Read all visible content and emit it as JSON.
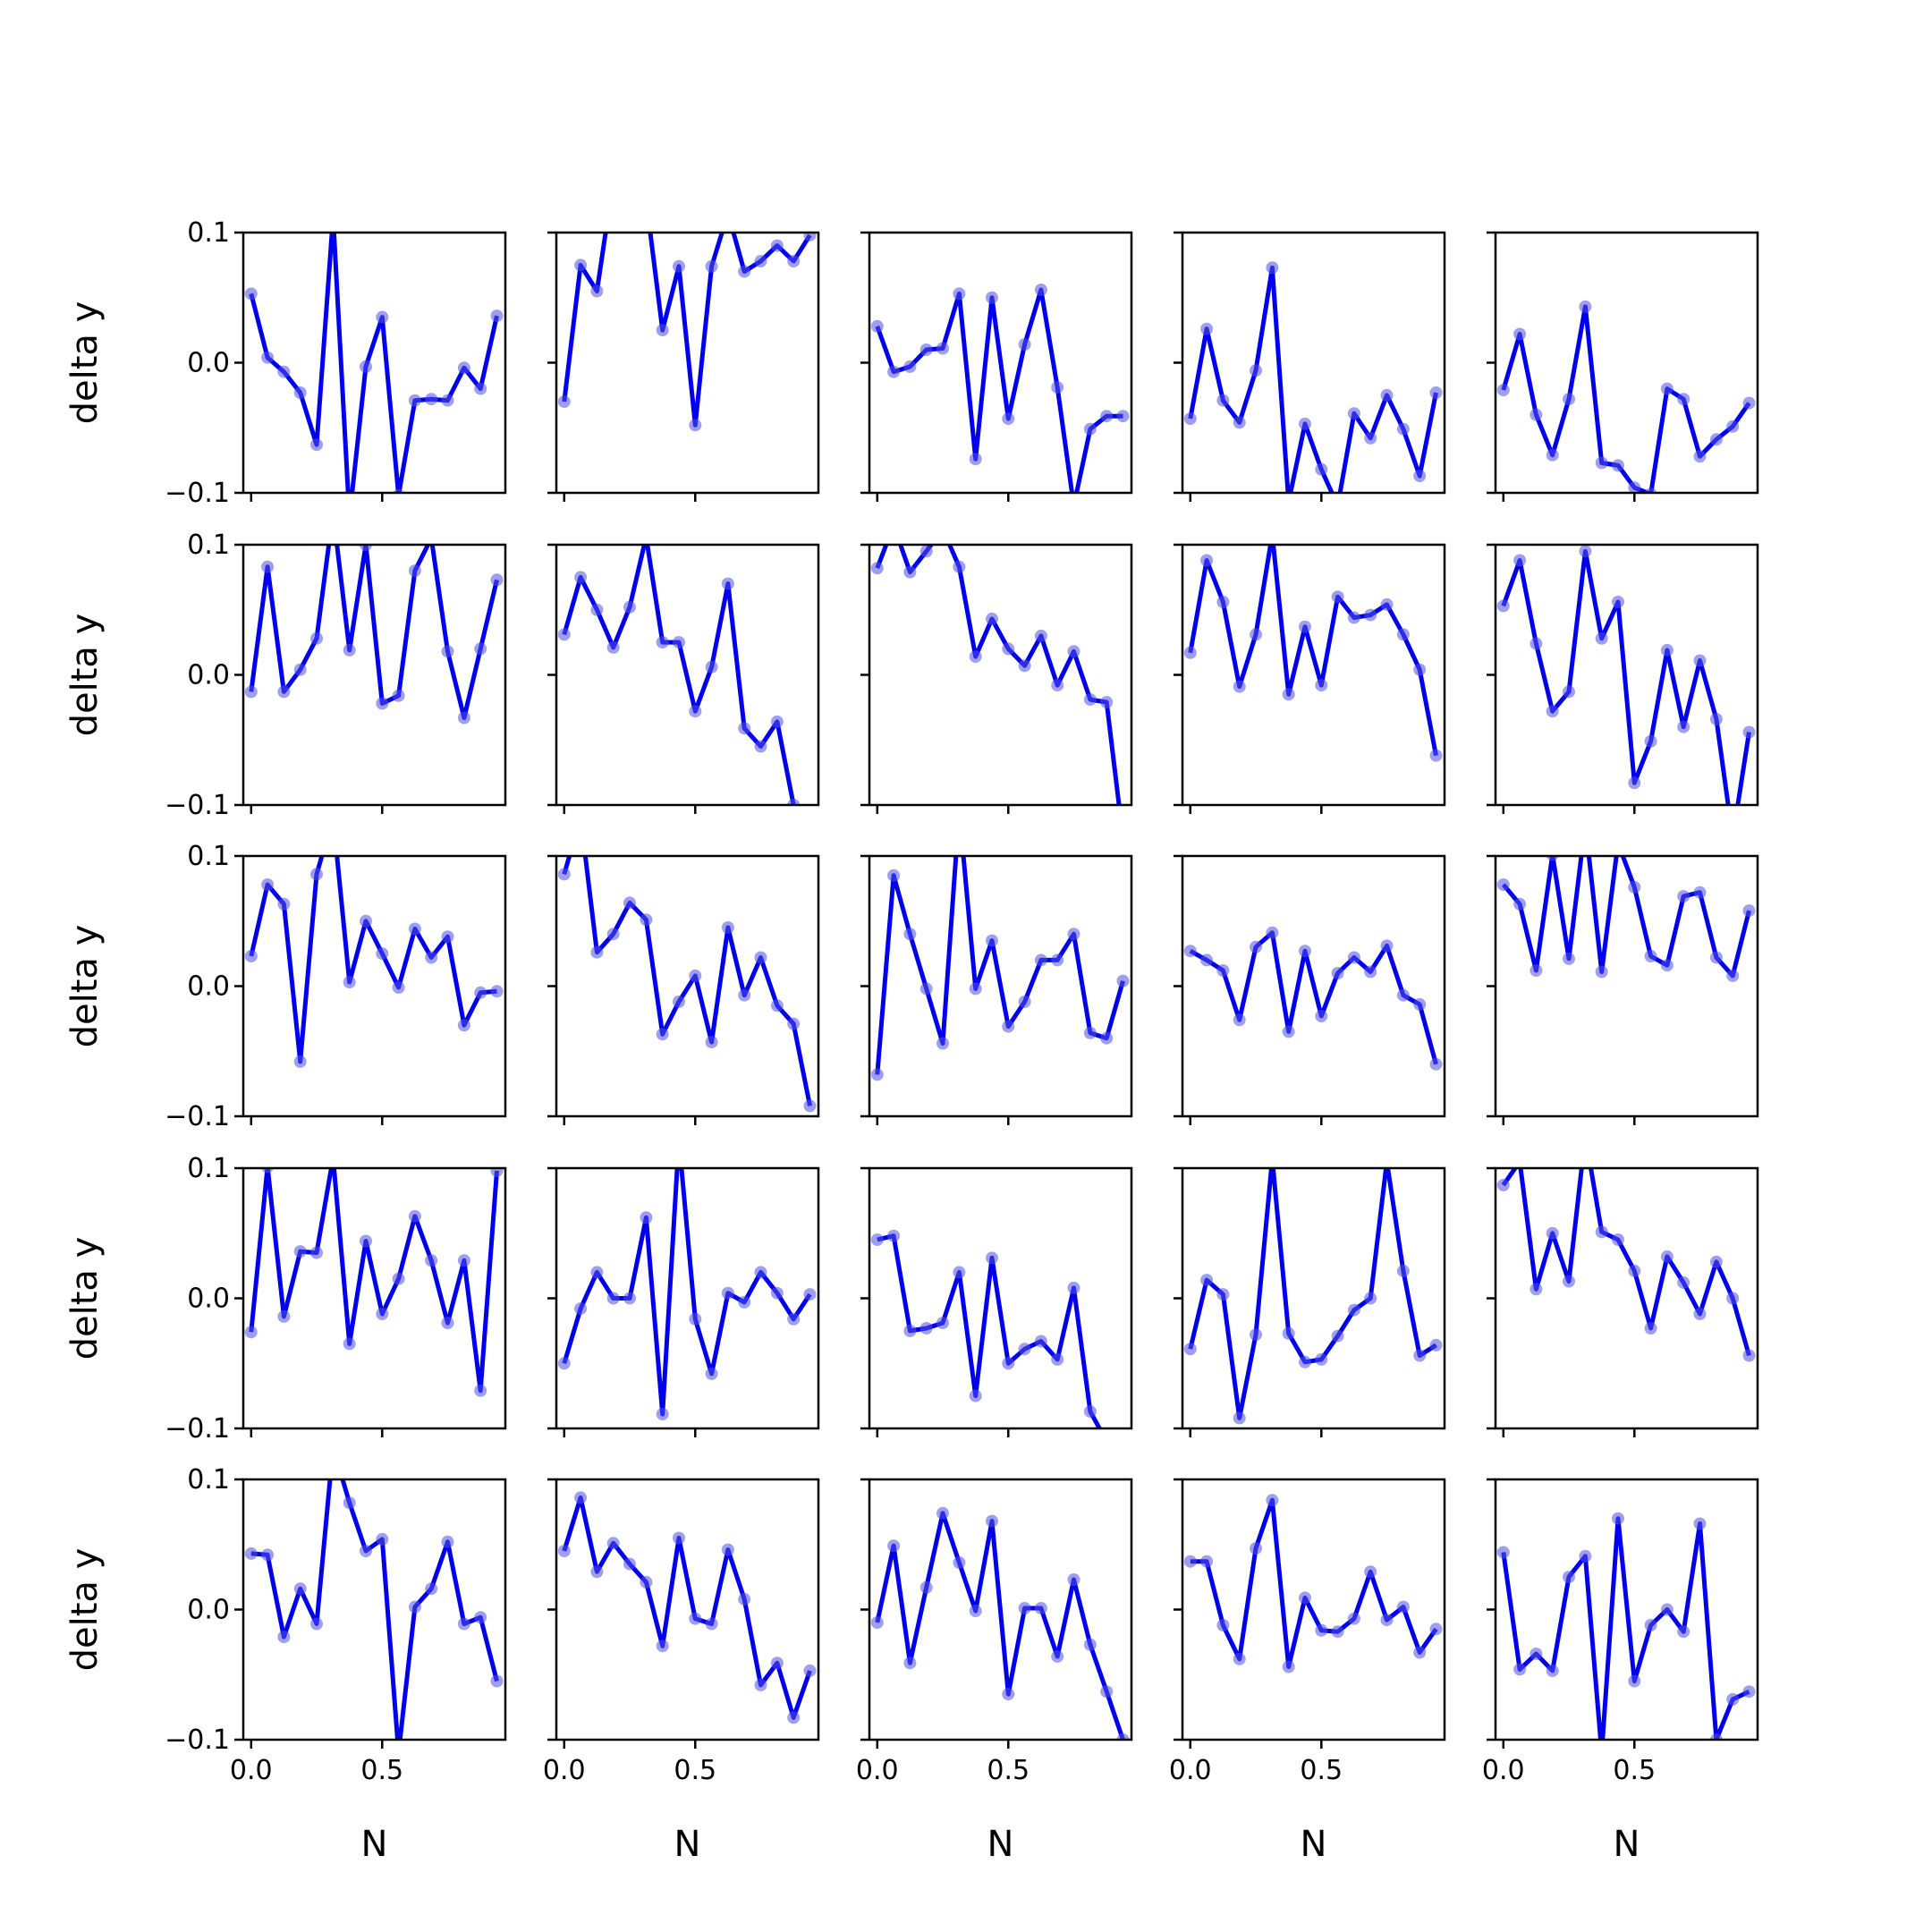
{
  "chart_data": {
    "type": "line",
    "layout": "grid",
    "rows": 5,
    "cols": 5,
    "xlabel": "N",
    "ylabel": "delta y",
    "xlim": [
      -0.03,
      0.97
    ],
    "ylim": [
      -0.1,
      0.1
    ],
    "xticks": [
      0.0,
      0.5
    ],
    "xtick_labels": [
      "0.0",
      "0.5"
    ],
    "yticks": [
      -0.1,
      0.0,
      0.1
    ],
    "ytick_labels": [
      "−0.1",
      "0.0",
      "0.1"
    ],
    "x": [
      0.0,
      0.0625,
      0.125,
      0.1875,
      0.25,
      0.3125,
      0.375,
      0.4375,
      0.5,
      0.5625,
      0.625,
      0.6875,
      0.75,
      0.8125,
      0.875,
      0.9375
    ],
    "line_color": "#0000ee",
    "marker_color": "#5050e6",
    "panels": [
      {
        "values": [
          0.053,
          0.004,
          -0.007,
          -0.023,
          -0.063,
          0.112,
          -0.119,
          -0.003,
          0.035,
          -0.102,
          -0.029,
          -0.028,
          -0.029,
          -0.004,
          -0.02,
          0.036
        ]
      },
      {
        "values": [
          -0.03,
          0.075,
          0.055,
          0.14,
          0.13,
          0.125,
          0.025,
          0.074,
          -0.048,
          0.074,
          0.115,
          0.07,
          0.078,
          0.09,
          0.078,
          0.098
        ]
      },
      {
        "values": [
          0.028,
          -0.007,
          -0.003,
          0.01,
          0.011,
          0.053,
          -0.074,
          0.05,
          -0.043,
          0.014,
          0.056,
          -0.019,
          -0.11,
          -0.051,
          -0.041,
          -0.041
        ]
      },
      {
        "values": [
          -0.043,
          0.026,
          -0.029,
          -0.046,
          -0.006,
          0.073,
          -0.107,
          -0.047,
          -0.082,
          -0.11,
          -0.039,
          -0.058,
          -0.025,
          -0.051,
          -0.087,
          -0.023
        ]
      },
      {
        "values": [
          -0.021,
          0.022,
          -0.04,
          -0.071,
          -0.028,
          0.043,
          -0.077,
          -0.079,
          -0.096,
          -0.101,
          -0.02,
          -0.028,
          -0.072,
          -0.059,
          -0.049,
          -0.031
        ]
      },
      {
        "values": [
          -0.013,
          0.083,
          -0.013,
          0.004,
          0.028,
          0.125,
          0.019,
          0.1,
          -0.022,
          -0.016,
          0.08,
          0.105,
          0.018,
          -0.033,
          0.02,
          0.073
        ]
      },
      {
        "values": [
          0.031,
          0.075,
          0.05,
          0.021,
          0.052,
          0.106,
          0.025,
          0.025,
          -0.028,
          0.006,
          0.07,
          -0.041,
          -0.055,
          -0.036,
          -0.1,
          -0.117
        ]
      },
      {
        "values": [
          0.082,
          0.115,
          0.079,
          0.095,
          0.112,
          0.083,
          0.014,
          0.043,
          0.02,
          0.007,
          0.03,
          -0.008,
          0.018,
          -0.019,
          -0.021,
          -0.125
        ]
      },
      {
        "values": [
          0.017,
          0.088,
          0.056,
          -0.009,
          0.031,
          0.108,
          -0.015,
          0.037,
          -0.008,
          0.06,
          0.044,
          0.046,
          0.054,
          0.031,
          0.004,
          -0.062
        ]
      },
      {
        "values": [
          0.053,
          0.088,
          0.024,
          -0.028,
          -0.013,
          0.095,
          0.028,
          0.056,
          -0.083,
          -0.051,
          0.019,
          -0.04,
          0.011,
          -0.034,
          -0.125,
          -0.044
        ]
      },
      {
        "values": [
          0.023,
          0.078,
          0.063,
          -0.058,
          0.086,
          0.13,
          0.003,
          0.05,
          0.025,
          -0.001,
          0.044,
          0.022,
          0.038,
          -0.03,
          -0.005,
          -0.004
        ]
      },
      {
        "values": [
          0.086,
          0.13,
          0.026,
          0.04,
          0.064,
          0.051,
          -0.037,
          -0.012,
          0.008,
          -0.043,
          0.045,
          -0.007,
          0.022,
          -0.015,
          -0.029,
          -0.092
        ]
      },
      {
        "values": [
          -0.068,
          0.085,
          0.04,
          -0.002,
          -0.044,
          0.135,
          -0.002,
          0.035,
          -0.031,
          -0.012,
          0.02,
          0.02,
          0.04,
          -0.036,
          -0.04,
          0.004
        ]
      },
      {
        "values": [
          0.027,
          0.02,
          0.012,
          -0.026,
          0.03,
          0.041,
          -0.035,
          0.027,
          -0.023,
          0.01,
          0.022,
          0.011,
          0.031,
          -0.007,
          -0.014,
          -0.06
        ]
      },
      {
        "values": [
          0.078,
          0.063,
          0.012,
          0.101,
          0.021,
          0.125,
          0.011,
          0.11,
          0.076,
          0.023,
          0.016,
          0.069,
          0.072,
          0.022,
          0.008,
          0.058
        ]
      },
      {
        "values": [
          -0.026,
          0.101,
          -0.014,
          0.036,
          0.035,
          0.108,
          -0.035,
          0.044,
          -0.012,
          0.015,
          0.063,
          0.029,
          -0.019,
          0.029,
          -0.071,
          0.098
        ]
      },
      {
        "values": [
          -0.05,
          -0.008,
          0.02,
          0.0,
          0.0,
          0.062,
          -0.089,
          0.122,
          -0.016,
          -0.058,
          0.004,
          -0.003,
          0.02,
          0.004,
          -0.016,
          0.003
        ]
      },
      {
        "values": [
          0.045,
          0.048,
          -0.025,
          -0.023,
          -0.019,
          0.02,
          -0.075,
          0.031,
          -0.05,
          -0.039,
          -0.033,
          -0.047,
          0.008,
          -0.087,
          -0.11,
          -0.125
        ]
      },
      {
        "values": [
          -0.039,
          0.014,
          0.003,
          -0.092,
          -0.028,
          0.107,
          -0.027,
          -0.049,
          -0.047,
          -0.029,
          -0.009,
          0.0,
          0.105,
          0.021,
          -0.044,
          -0.036
        ]
      },
      {
        "values": [
          0.087,
          0.105,
          0.007,
          0.05,
          0.013,
          0.125,
          0.051,
          0.045,
          0.021,
          -0.023,
          0.032,
          0.012,
          -0.012,
          0.028,
          0.0,
          -0.044
        ]
      },
      {
        "values": [
          0.043,
          0.042,
          -0.021,
          0.016,
          -0.011,
          0.125,
          0.082,
          0.045,
          0.054,
          -0.11,
          0.002,
          0.016,
          0.052,
          -0.011,
          -0.006,
          -0.055
        ]
      },
      {
        "values": [
          0.045,
          0.086,
          0.029,
          0.051,
          0.035,
          0.021,
          -0.028,
          0.055,
          -0.007,
          -0.011,
          0.046,
          0.008,
          -0.058,
          -0.041,
          -0.083,
          -0.047
        ]
      },
      {
        "values": [
          -0.01,
          0.049,
          -0.041,
          0.017,
          0.074,
          0.036,
          -0.001,
          0.068,
          -0.065,
          0.001,
          0.001,
          -0.036,
          0.023,
          -0.027,
          -0.063,
          -0.1
        ]
      },
      {
        "values": [
          0.037,
          0.037,
          -0.012,
          -0.038,
          0.047,
          0.084,
          -0.044,
          0.009,
          -0.016,
          -0.017,
          -0.007,
          0.029,
          -0.008,
          0.002,
          -0.033,
          -0.015
        ]
      },
      {
        "values": [
          0.044,
          -0.046,
          -0.034,
          -0.047,
          0.025,
          0.041,
          -0.11,
          0.07,
          -0.055,
          -0.012,
          0.0,
          -0.017,
          0.066,
          -0.1,
          -0.069,
          -0.063
        ]
      }
    ]
  }
}
